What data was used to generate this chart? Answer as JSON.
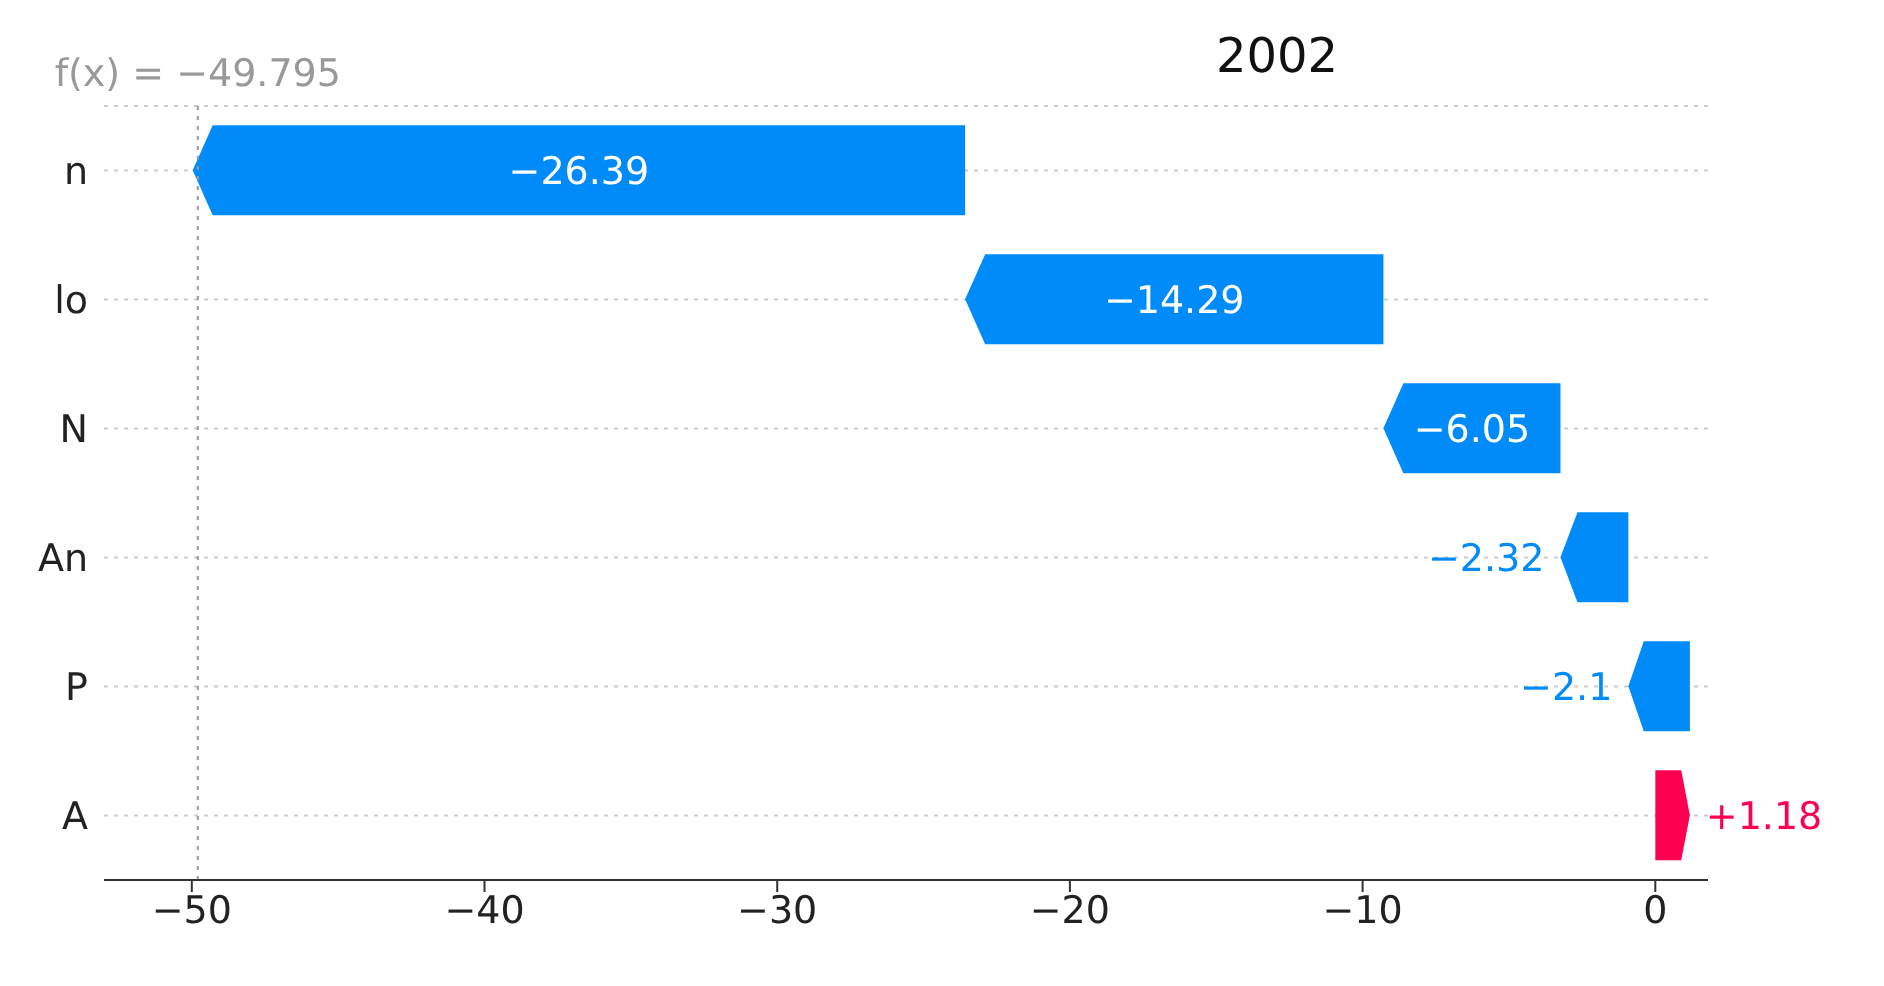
{
  "chart_data": {
    "type": "bar",
    "orientation": "horizontal",
    "title": "2002",
    "categories": [
      "n",
      "lo",
      "N",
      "An",
      "P",
      "A"
    ],
    "values": [
      -26.39,
      -14.29,
      -6.05,
      -2.32,
      -2.1,
      1.18
    ],
    "base": [
      -23.58,
      -9.29,
      -3.24,
      -0.92,
      1.18,
      null
    ],
    "colors": [
      "#008bfb",
      "#008bfb",
      "#008bfb",
      "#008bfb",
      "#008bfb",
      "#ff0051"
    ],
    "value_labels": [
      "−26.39",
      "−14.29",
      "−6.05",
      "−2.32",
      "−2.1",
      "+1.18"
    ],
    "xlim": [
      -53,
      1.8
    ],
    "xticks": [
      -50,
      -40,
      -30,
      -20,
      -10,
      0
    ],
    "grid": "y",
    "ref_lines": [
      {
        "axis": "x",
        "value": -49.795,
        "label": "f(x) = −49.795",
        "color": "#999999",
        "line_style": "dotted"
      }
    ]
  }
}
